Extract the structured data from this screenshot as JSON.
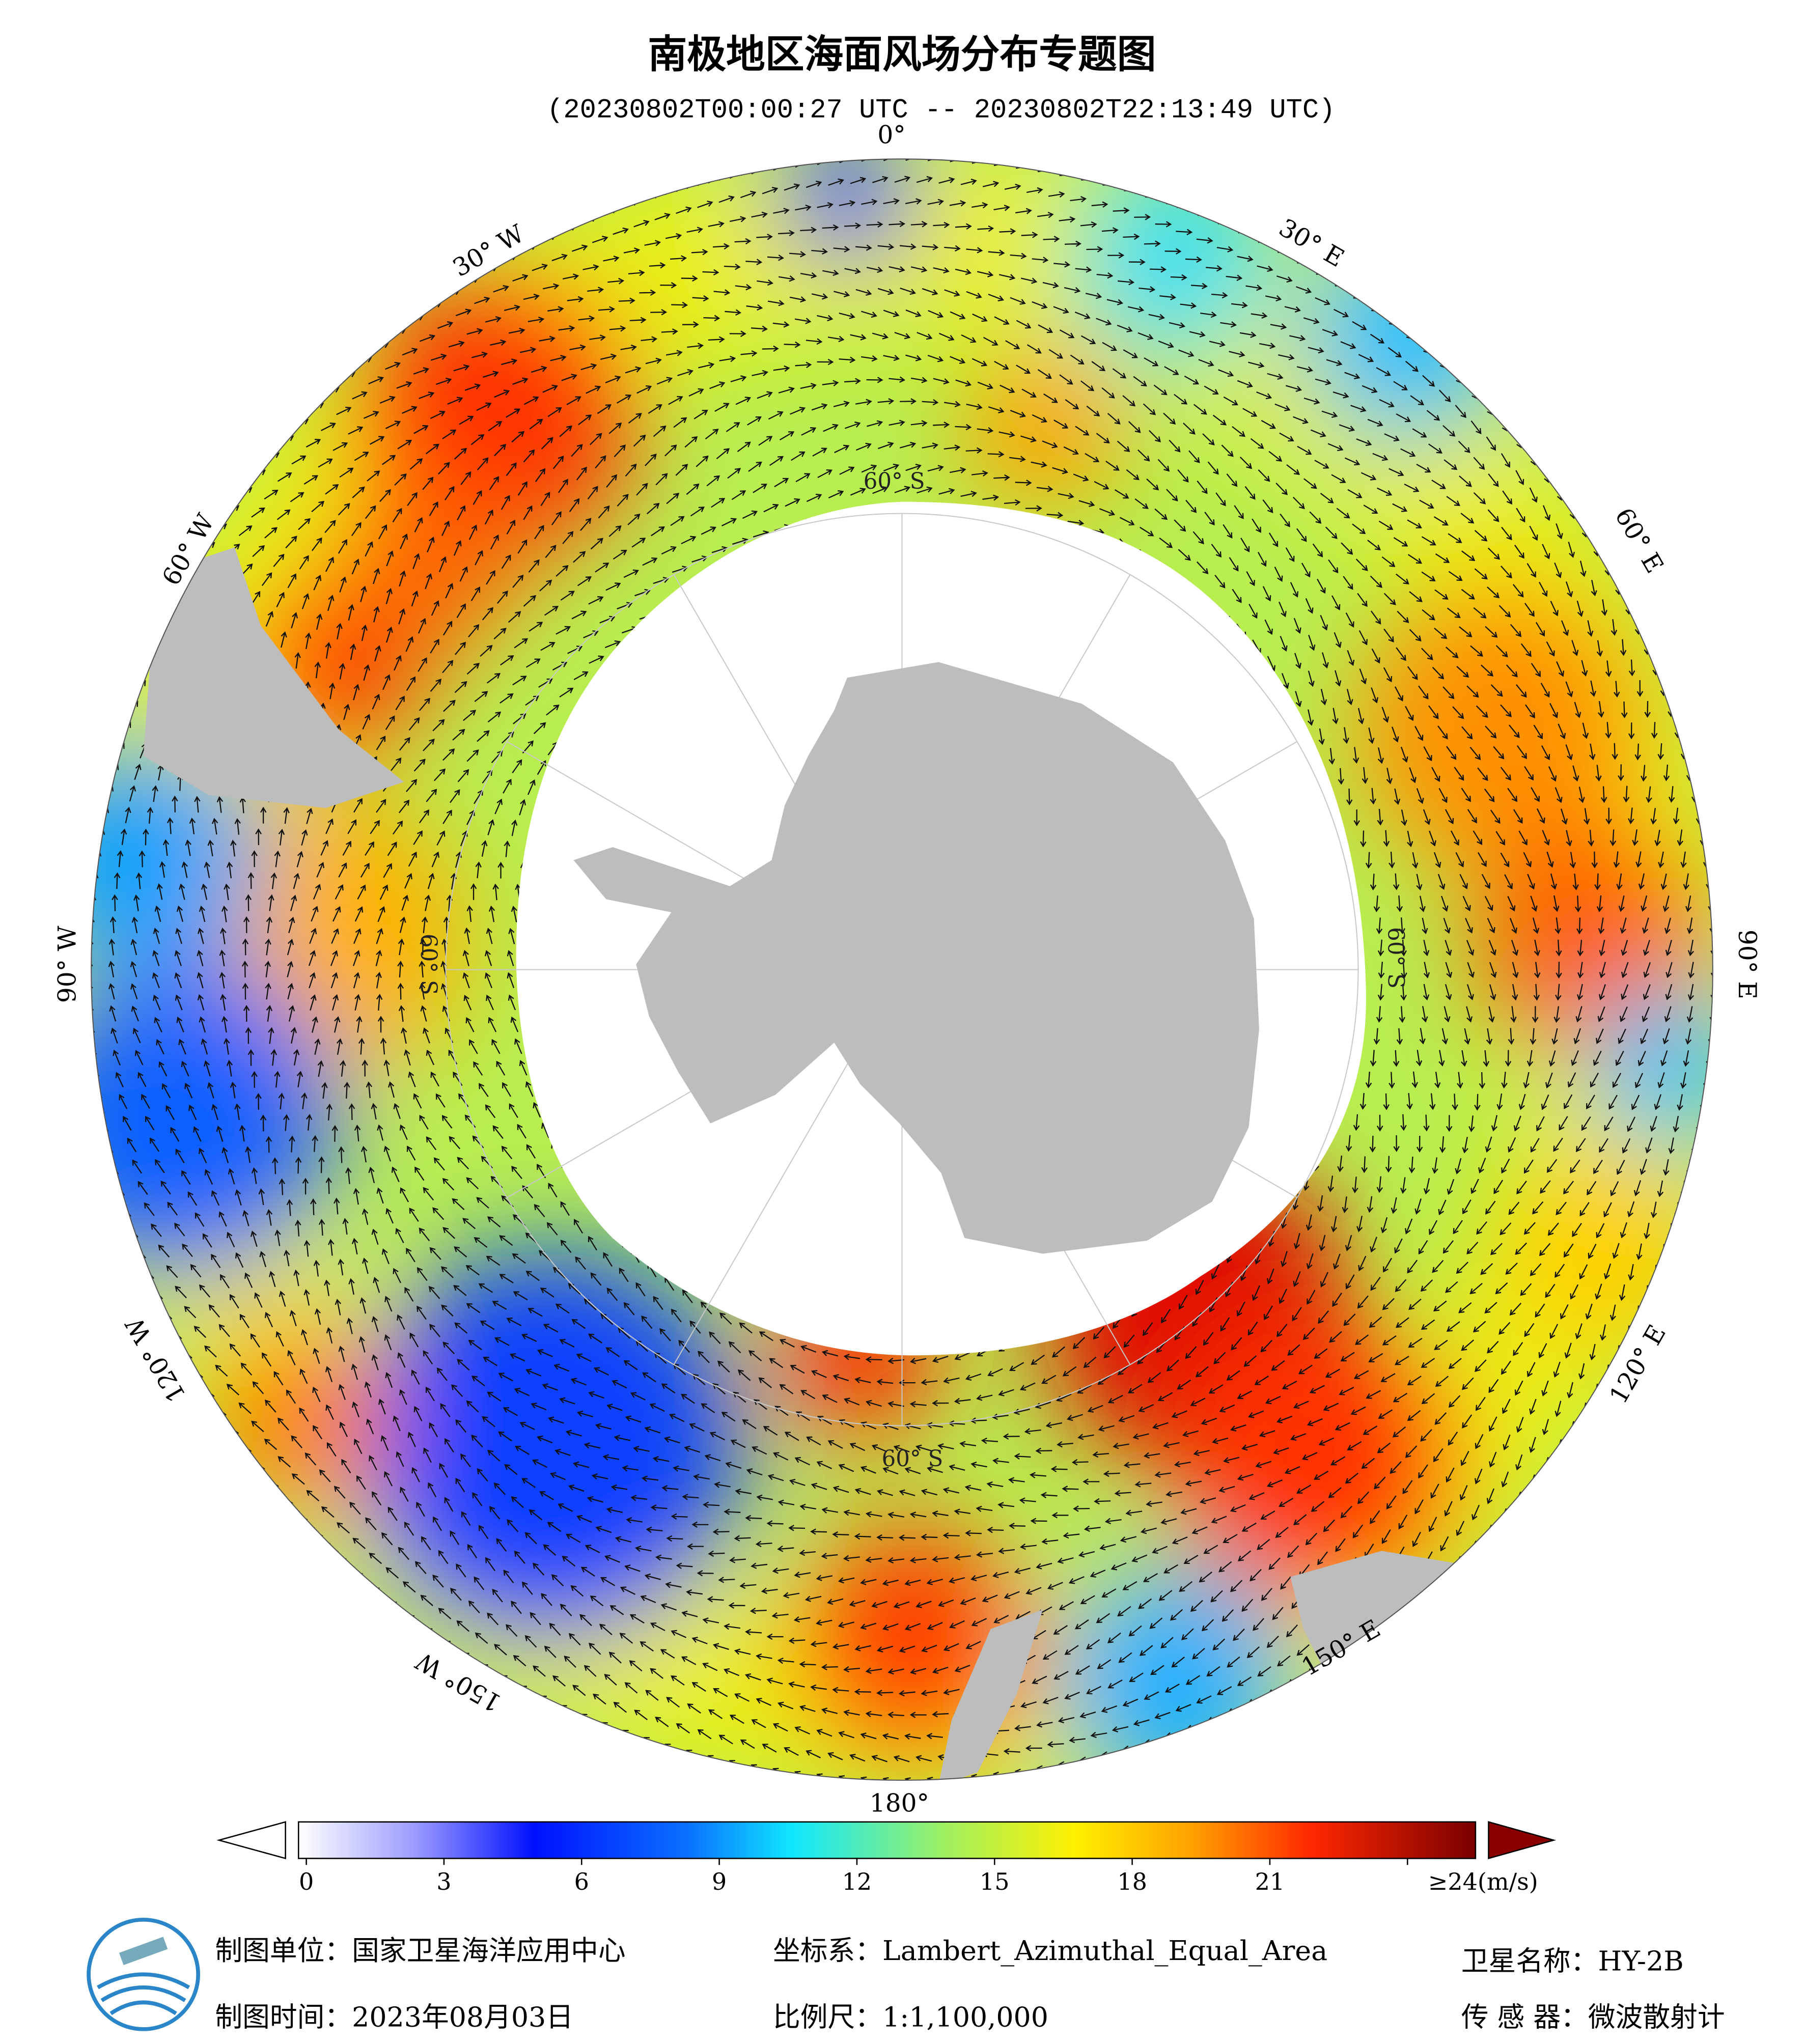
{
  "header": {
    "title": "南极地区海面风场分布专题图",
    "subtitle": "(20230802T00:00:27 UTC -- 20230802T22:13:49 UTC)"
  },
  "map": {
    "longitude_labels": [
      "0°",
      "30° E",
      "60° E",
      "90° E",
      "120° E",
      "150° E",
      "180°",
      "150° W",
      "120° W",
      "90° W",
      "60° W",
      "30° W"
    ],
    "latitude_labels": [
      "60° S",
      "60° S",
      "60° S",
      "60° S"
    ]
  },
  "colorbar": {
    "ticks": [
      0,
      3,
      6,
      9,
      12,
      15,
      18,
      21,
      {
        "value": 24,
        "label": "≥24(m/s)"
      }
    ]
  },
  "footer": {
    "unit": "制图单位：国家卫星海洋应用中心",
    "projection": "坐标系：Lambert_Azimuthal_Equal_Area",
    "satellite": "卫星名称：HY-2B",
    "date": "制图时间：2023年08月03日",
    "scale": "比例尺：1:1,100,000",
    "sensor": "传 感 器：微波散射计"
  }
}
